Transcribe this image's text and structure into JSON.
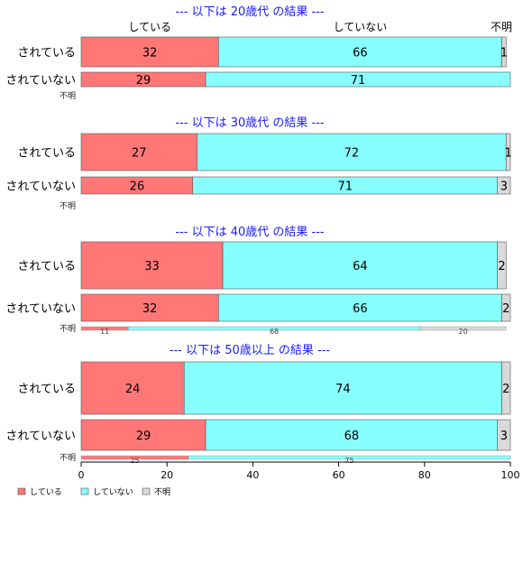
{
  "chart_data": {
    "type": "bar",
    "orientation": "horizontal",
    "stacked": true,
    "percent": true,
    "column_headers": [
      "している",
      "していない",
      "不明"
    ],
    "legend": {
      "placement": "bottom-left",
      "entries": [
        {
          "label": "している",
          "color": "#ff7777"
        },
        {
          "label": "していない",
          "color": "#88ffff"
        },
        {
          "label": "不明",
          "color": "#d9d9d9"
        }
      ]
    },
    "colors": [
      "#ff7777",
      "#88ffff",
      "#d9d9d9"
    ],
    "xlim": [
      0,
      100
    ],
    "xticks": [
      0,
      20,
      40,
      60,
      80,
      100
    ],
    "panels": [
      {
        "title": "--- 以下は 20歳代 の結果 ---",
        "rows": [
          {
            "label": "されている",
            "values": [
              32,
              66,
              1
            ]
          },
          {
            "label": "されていない",
            "values": [
              29,
              71,
              0
            ]
          },
          {
            "label": "不明",
            "values": [],
            "thin": true
          }
        ]
      },
      {
        "title": "--- 以下は 30歳代 の結果 ---",
        "rows": [
          {
            "label": "されている",
            "values": [
              27,
              72,
              1
            ]
          },
          {
            "label": "されていない",
            "values": [
              26,
              71,
              3
            ]
          },
          {
            "label": "不明",
            "values": [],
            "thin": true
          }
        ]
      },
      {
        "title": "--- 以下は 40歳代 の結果 ---",
        "rows": [
          {
            "label": "されている",
            "values": [
              33,
              64,
              2
            ]
          },
          {
            "label": "されていない",
            "values": [
              32,
              66,
              2
            ]
          },
          {
            "label": "不明",
            "values": [
              11,
              68,
              20
            ],
            "thin": true
          }
        ]
      },
      {
        "title": "--- 以下は 50歳以上 の結果 ---",
        "rows": [
          {
            "label": "されている",
            "values": [
              24,
              74,
              2
            ]
          },
          {
            "label": "されていない",
            "values": [
              29,
              68,
              3
            ]
          },
          {
            "label": "不明",
            "values": [
              25,
              75,
              0
            ],
            "thin": true
          }
        ]
      }
    ]
  }
}
